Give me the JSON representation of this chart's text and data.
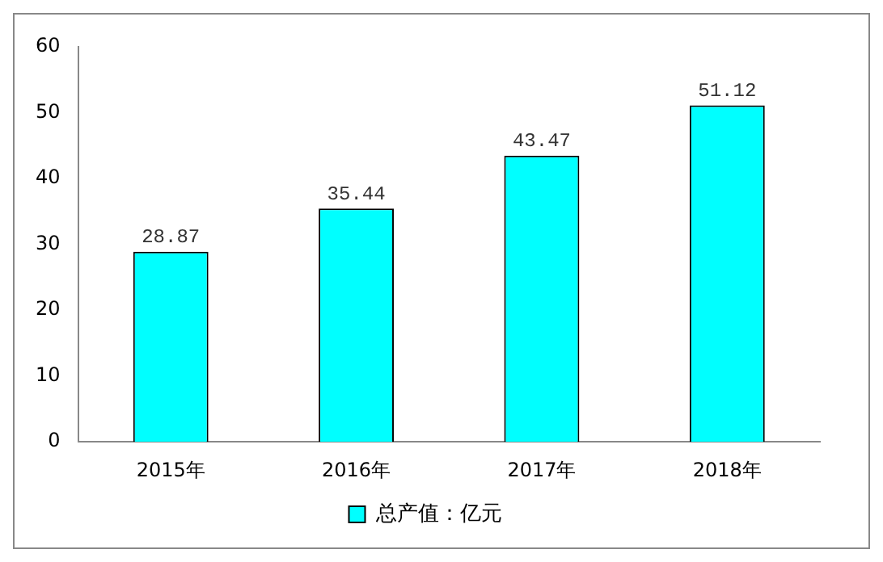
{
  "chart_data": {
    "type": "bar",
    "categories": [
      "2015年",
      "2016年",
      "2017年",
      "2018年"
    ],
    "series": [
      {
        "name": "总产值：亿元",
        "color": "#00ffff",
        "values": [
          28.87,
          35.44,
          43.47,
          51.12
        ]
      }
    ],
    "ylim": [
      0,
      60
    ],
    "yticks": [
      0,
      10,
      20,
      30,
      40,
      50,
      60
    ],
    "grid": false,
    "legend": "bottom",
    "data_labels": true
  }
}
